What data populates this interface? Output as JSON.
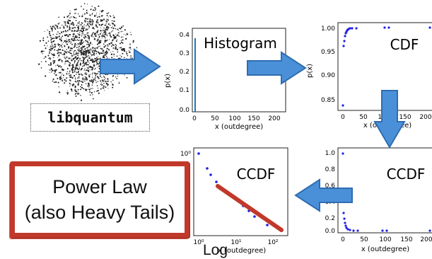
{
  "network_label": "libquantum",
  "powerlaw_box": {
    "line1": "Power Law",
    "line2": "(also Heavy Tails)"
  },
  "log_label": "Log",
  "colors": {
    "arrow_fill": "#4a90d9",
    "arrow_stroke": "#2f6db0",
    "box_border": "#c0392b",
    "points": "#1f1fe6",
    "fit_line": "#c0392b"
  },
  "panels": {
    "histogram": {
      "title": "Histogram",
      "ylabel": "p(x)",
      "xlabel": "x (outdegree)",
      "yticks": [
        "0.0",
        "0.1",
        "0.2",
        "0.3",
        "0.4"
      ],
      "xticks": [
        "0",
        "50",
        "100",
        "150",
        "200"
      ]
    },
    "cdf": {
      "title": "CDF",
      "ylabel": "p(x)",
      "xlabel": "x (outdegree)",
      "yticks": [
        "0.85",
        "0.90",
        "0.95",
        "1.00"
      ],
      "xticks": [
        "0",
        "50",
        "100",
        "150",
        "200"
      ]
    },
    "ccdf_lin": {
      "title": "CCDF",
      "xlabel": "x (outdegree)",
      "yticks": [
        "0.0",
        "0.2",
        "0.4",
        "0.6",
        "0.8",
        "1.0"
      ],
      "xticks": [
        "0",
        "50",
        "100",
        "150",
        "200"
      ]
    },
    "ccdf_log": {
      "title": "CCDF",
      "xlabel": "x (outdegree)",
      "yticks": [
        "10⁰"
      ],
      "xticks": [
        "10⁰",
        "10¹",
        "10²"
      ]
    }
  }
}
